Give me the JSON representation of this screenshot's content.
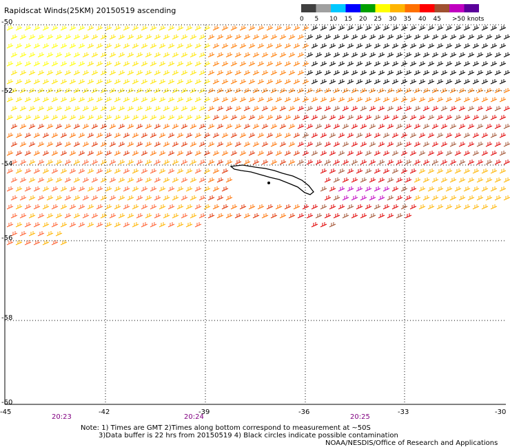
{
  "title": "Rapidscat Winds(25KM) 20150519 ascending",
  "legend": {
    "ticks": [
      "0",
      "5",
      "10",
      "15",
      "20",
      "25",
      "30",
      "35",
      "40",
      "45",
      ">50 knots"
    ],
    "colors": [
      "#404040",
      "#a0a0a0",
      "#00c8ff",
      "#0000ff",
      "#00a000",
      "#ffff00",
      "#ffb400",
      "#ff7000",
      "#ff0000",
      "#a05030",
      "#c000c0",
      "#5a009a"
    ]
  },
  "axes": {
    "lon_labels": [
      "-45",
      "-42",
      "-39",
      "-36",
      "-33",
      "-30"
    ],
    "lat_labels": [
      "-50",
      "-52",
      "-54",
      "-56",
      "-58",
      "-60"
    ]
  },
  "times": [
    "20:23",
    "20:24",
    "20:25"
  ],
  "notes": {
    "line1": "Note: 1) Times are GMT 2)Times along bottom correspond to measurement at ~50S",
    "line2": "3)Data buffer is 22 hrs from 20150519 4) Black circles indicate possible contamination",
    "line3": "NOAA/NESDIS/Office of Research and Applications"
  }
}
